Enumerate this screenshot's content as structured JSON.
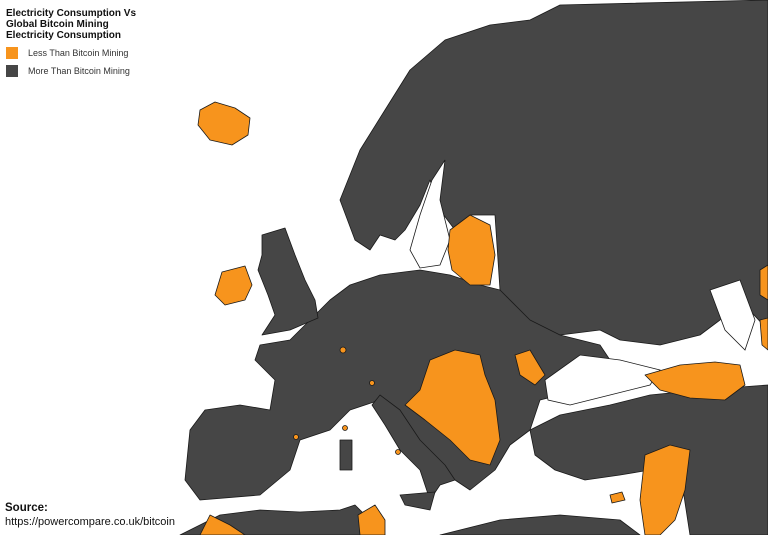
{
  "title": "Electricity Consumption Vs\nGlobal Bitcoin Mining\nElectricity Consumption",
  "legend": [
    {
      "label": "Less Than Bitcoin Mining",
      "color": "#f7941d"
    },
    {
      "label": "More Than Bitcoin Mining",
      "color": "#464646"
    }
  ],
  "source": {
    "label": "Source:",
    "url": "https://powercompare.co.uk/bitcoin"
  },
  "colors": {
    "less": "#f7941d",
    "more": "#464646",
    "sea": "#ffffff",
    "border": "#1a1a1a"
  }
}
